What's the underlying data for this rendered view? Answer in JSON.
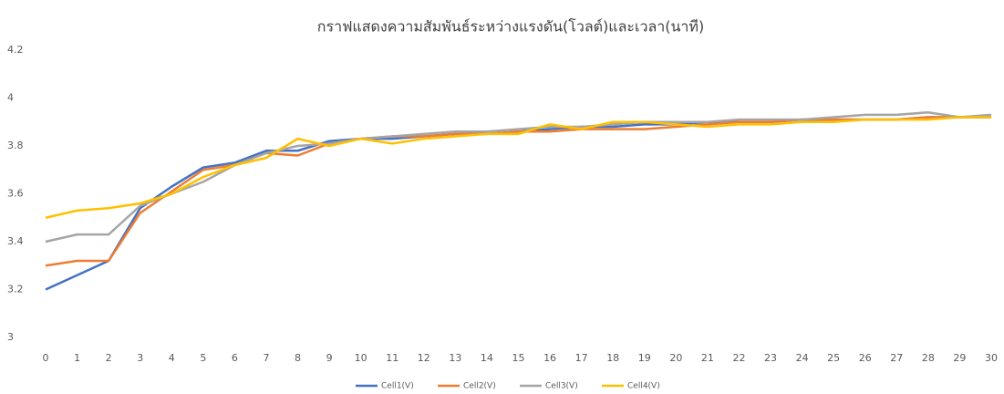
{
  "chart_data": {
    "type": "line",
    "title": "กราฟแสดงความสัมพันธ์ระหว่างแรงดัน(โวลต์)และเวลา(นาที)",
    "x": [
      0,
      1,
      2,
      3,
      4,
      5,
      6,
      7,
      8,
      9,
      10,
      11,
      12,
      13,
      14,
      15,
      16,
      17,
      18,
      19,
      20,
      21,
      22,
      23,
      24,
      25,
      26,
      27,
      28,
      29,
      30
    ],
    "xlim": [
      0,
      30
    ],
    "ylim": [
      3,
      4.2
    ],
    "yticks": [
      3,
      3.2,
      3.4,
      3.6,
      3.8,
      4,
      4.2
    ],
    "grid": false,
    "legend": "bottom",
    "series": [
      {
        "name": "Cell1(V)",
        "color": "#4472c4",
        "values": [
          3.2,
          3.26,
          3.32,
          3.54,
          3.63,
          3.71,
          3.73,
          3.78,
          3.78,
          3.82,
          3.83,
          3.83,
          3.84,
          3.85,
          3.85,
          3.86,
          3.87,
          3.88,
          3.88,
          3.89,
          3.89,
          3.9,
          3.9,
          3.9,
          3.91,
          3.91,
          3.91,
          3.91,
          3.92,
          3.92,
          3.92
        ]
      },
      {
        "name": "Cell2(V)",
        "color": "#ed7d31",
        "values": [
          3.3,
          3.32,
          3.32,
          3.52,
          3.61,
          3.7,
          3.72,
          3.77,
          3.76,
          3.81,
          3.83,
          3.84,
          3.84,
          3.85,
          3.85,
          3.86,
          3.86,
          3.87,
          3.87,
          3.87,
          3.88,
          3.89,
          3.9,
          3.9,
          3.91,
          3.91,
          3.91,
          3.91,
          3.92,
          3.92,
          3.92
        ]
      },
      {
        "name": "Cell3(V)",
        "color": "#a5a5a5",
        "values": [
          3.4,
          3.43,
          3.43,
          3.55,
          3.6,
          3.65,
          3.72,
          3.77,
          3.8,
          3.81,
          3.83,
          3.84,
          3.85,
          3.86,
          3.86,
          3.87,
          3.88,
          3.88,
          3.89,
          3.9,
          3.9,
          3.9,
          3.91,
          3.91,
          3.91,
          3.92,
          3.93,
          3.93,
          3.94,
          3.92,
          3.93
        ]
      },
      {
        "name": "Cell4(V)",
        "color": "#ffc000",
        "values": [
          3.5,
          3.53,
          3.54,
          3.56,
          3.6,
          3.67,
          3.72,
          3.75,
          3.83,
          3.8,
          3.83,
          3.81,
          3.83,
          3.84,
          3.85,
          3.85,
          3.89,
          3.87,
          3.9,
          3.9,
          3.89,
          3.88,
          3.89,
          3.89,
          3.9,
          3.9,
          3.91,
          3.91,
          3.91,
          3.92,
          3.92
        ]
      }
    ]
  }
}
